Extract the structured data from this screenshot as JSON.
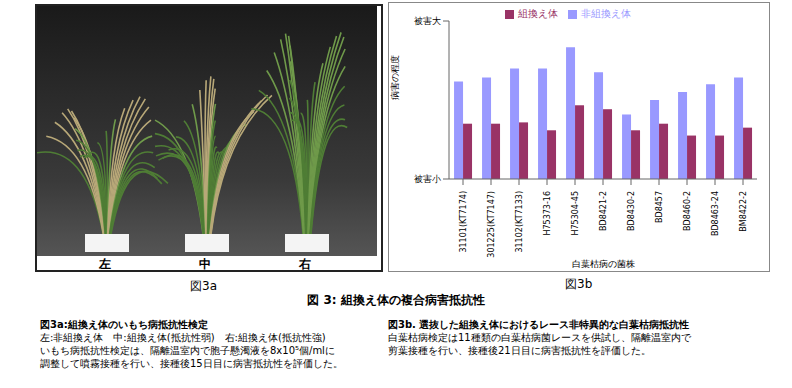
{
  "figure": {
    "title": "図 3:  組換え体の複合病害抵抗性",
    "panel_a": {
      "label": "図3a",
      "positions": [
        "左",
        "中",
        "右"
      ],
      "caption_title": "図3a:組換え体のいもち病抵抗性検定",
      "caption_lines": [
        "左:非組換え体　中:組換え体(抵抗性弱)　右:組換え体(抵抗性強)",
        "いもち病抵抗性検定は、隔離温室内で胞子懸濁液を8x10⁵個/mlに",
        "調整して噴霧接種を行い、接種後15日目に病害抵抗性を評価した。"
      ]
    },
    "panel_b": {
      "label": "図3b",
      "caption_title": "図3b. 選抜した組換え体におけるレース非特異的な白葉枯病抵抗性",
      "caption_lines": [
        "白葉枯病検定は11種類の白葉枯病菌レースを供試し、隔離温室内で",
        "剪葉接種を行い、接種後21日目に病害抵抗性を評価した。"
      ]
    }
  },
  "chart_data": {
    "type": "bar",
    "x_label": "白葉枯病の菌株",
    "y_label": "病害の程度",
    "categories": [
      "31101(KT7174)",
      "301225(KT7147)",
      "31102(KT7133)",
      "H75373-16",
      "H75304-45",
      "BD8421-2",
      "BD8430-2",
      "BD8457",
      "BD8460-2",
      "BD8463-24",
      "BM8422-2"
    ],
    "series": [
      {
        "name": "非組換え体",
        "color": "#9999ff",
        "values": [
          3.7,
          3.85,
          4.2,
          4.2,
          5.0,
          4.05,
          2.45,
          3.0,
          3.3,
          3.6,
          3.85
        ]
      },
      {
        "name": "組換え体",
        "color": "#993366",
        "values": [
          2.1,
          2.1,
          2.15,
          1.85,
          2.8,
          2.65,
          1.85,
          2.1,
          1.65,
          1.65,
          1.95
        ]
      }
    ],
    "ylim": [
      0,
      6
    ],
    "yticks": [
      {
        "value": 0,
        "label": "被害小"
      },
      {
        "value": 6,
        "label": "被害大"
      }
    ],
    "legend": "top"
  }
}
